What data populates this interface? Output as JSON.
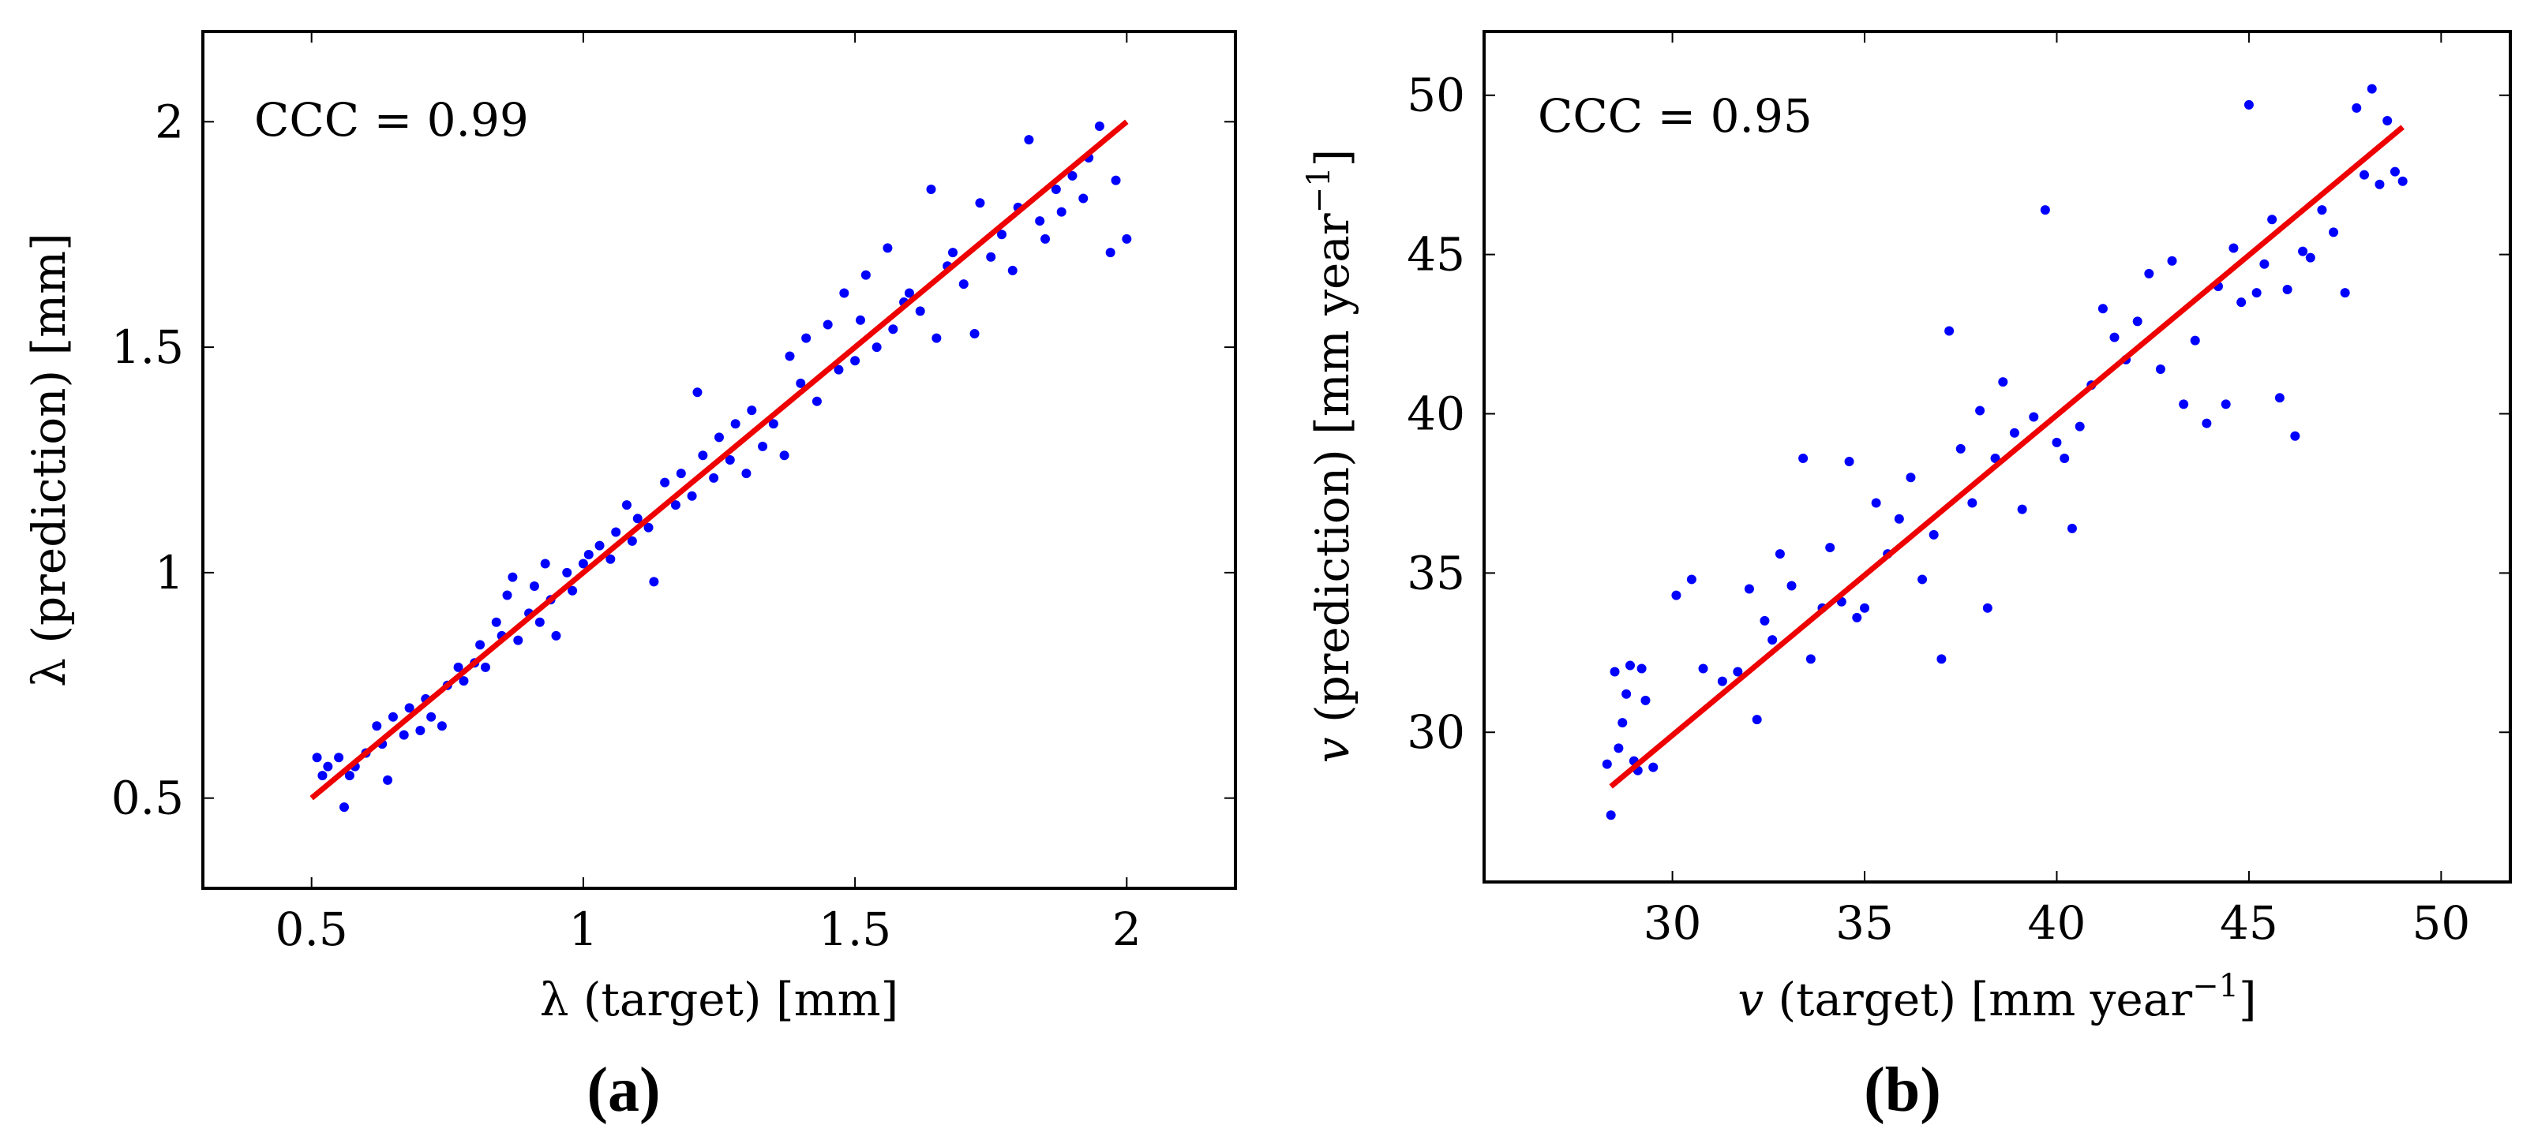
{
  "chart_data": [
    {
      "type": "scatter",
      "panel_label": "(a)",
      "annotation": "CCC = 0.99",
      "xlabel": "λ (target) [mm]",
      "ylabel": "λ (prediction) [mm]",
      "xlim": [
        0.3,
        2.2
      ],
      "ylim": [
        0.3,
        2.2
      ],
      "xticks": [
        0.5,
        1,
        1.5,
        2
      ],
      "yticks": [
        0.5,
        1,
        1.5,
        2
      ],
      "xtick_labels": [
        "0.5",
        "1",
        "1.5",
        "2"
      ],
      "ytick_labels": [
        "0.5",
        "1",
        "1.5",
        "2"
      ],
      "grid": false,
      "colors": {
        "points": "#0000ff",
        "fit_line": "#ee0000"
      },
      "series": [
        {
          "type": "scatter",
          "points": [
            [
              0.51,
              0.59
            ],
            [
              0.52,
              0.55
            ],
            [
              0.53,
              0.57
            ],
            [
              0.55,
              0.59
            ],
            [
              0.56,
              0.48
            ],
            [
              0.57,
              0.55
            ],
            [
              0.58,
              0.57
            ],
            [
              0.6,
              0.6
            ],
            [
              0.62,
              0.66
            ],
            [
              0.63,
              0.62
            ],
            [
              0.64,
              0.54
            ],
            [
              0.65,
              0.68
            ],
            [
              0.67,
              0.64
            ],
            [
              0.68,
              0.7
            ],
            [
              0.7,
              0.65
            ],
            [
              0.71,
              0.72
            ],
            [
              0.72,
              0.68
            ],
            [
              0.74,
              0.66
            ],
            [
              0.75,
              0.75
            ],
            [
              0.77,
              0.79
            ],
            [
              0.78,
              0.76
            ],
            [
              0.8,
              0.8
            ],
            [
              0.81,
              0.84
            ],
            [
              0.82,
              0.79
            ],
            [
              0.84,
              0.89
            ],
            [
              0.85,
              0.86
            ],
            [
              0.86,
              0.95
            ],
            [
              0.87,
              0.99
            ],
            [
              0.88,
              0.85
            ],
            [
              0.9,
              0.91
            ],
            [
              0.91,
              0.97
            ],
            [
              0.92,
              0.89
            ],
            [
              0.93,
              1.02
            ],
            [
              0.94,
              0.94
            ],
            [
              0.95,
              0.86
            ],
            [
              0.97,
              1.0
            ],
            [
              0.98,
              0.96
            ],
            [
              1.0,
              1.02
            ],
            [
              1.01,
              1.04
            ],
            [
              1.03,
              1.06
            ],
            [
              1.05,
              1.03
            ],
            [
              1.06,
              1.09
            ],
            [
              1.08,
              1.15
            ],
            [
              1.09,
              1.07
            ],
            [
              1.1,
              1.12
            ],
            [
              1.12,
              1.1
            ],
            [
              1.13,
              0.98
            ],
            [
              1.15,
              1.2
            ],
            [
              1.17,
              1.15
            ],
            [
              1.18,
              1.22
            ],
            [
              1.2,
              1.17
            ],
            [
              1.21,
              1.4
            ],
            [
              1.22,
              1.26
            ],
            [
              1.24,
              1.21
            ],
            [
              1.25,
              1.3
            ],
            [
              1.27,
              1.25
            ],
            [
              1.28,
              1.33
            ],
            [
              1.3,
              1.22
            ],
            [
              1.31,
              1.36
            ],
            [
              1.33,
              1.28
            ],
            [
              1.35,
              1.33
            ],
            [
              1.37,
              1.26
            ],
            [
              1.38,
              1.48
            ],
            [
              1.4,
              1.42
            ],
            [
              1.41,
              1.52
            ],
            [
              1.43,
              1.38
            ],
            [
              1.45,
              1.55
            ],
            [
              1.47,
              1.45
            ],
            [
              1.48,
              1.62
            ],
            [
              1.5,
              1.47
            ],
            [
              1.51,
              1.56
            ],
            [
              1.52,
              1.66
            ],
            [
              1.54,
              1.5
            ],
            [
              1.56,
              1.72
            ],
            [
              1.57,
              1.54
            ],
            [
              1.59,
              1.6
            ],
            [
              1.6,
              1.62
            ],
            [
              1.62,
              1.58
            ],
            [
              1.64,
              1.85
            ],
            [
              1.65,
              1.52
            ],
            [
              1.67,
              1.68
            ],
            [
              1.68,
              1.71
            ],
            [
              1.7,
              1.64
            ],
            [
              1.72,
              1.53
            ],
            [
              1.73,
              1.82
            ],
            [
              1.75,
              1.7
            ],
            [
              1.77,
              1.75
            ],
            [
              1.79,
              1.67
            ],
            [
              1.8,
              1.81
            ],
            [
              1.82,
              1.96
            ],
            [
              1.84,
              1.78
            ],
            [
              1.85,
              1.74
            ],
            [
              1.87,
              1.85
            ],
            [
              1.88,
              1.8
            ],
            [
              1.9,
              1.88
            ],
            [
              1.92,
              1.83
            ],
            [
              1.93,
              1.92
            ],
            [
              1.95,
              1.99
            ],
            [
              1.97,
              1.71
            ],
            [
              1.98,
              1.87
            ],
            [
              2.0,
              1.74
            ]
          ]
        },
        {
          "type": "line",
          "points": [
            [
              0.5,
              0.5
            ],
            [
              2.0,
              2.0
            ]
          ]
        }
      ]
    },
    {
      "type": "scatter",
      "panel_label": "(b)",
      "annotation": "CCC = 0.95",
      "xlabel_var": "v",
      "xlabel_mid": " (target) [mm year",
      "xlabel_exp": "−1",
      "xlabel_end": "]",
      "ylabel_var": "v",
      "ylabel_mid": " (prediction) [mm year",
      "ylabel_exp": "−1",
      "ylabel_end": "]",
      "xlim": [
        25.1,
        51.8
      ],
      "ylim": [
        25.3,
        52.0
      ],
      "xticks": [
        30,
        35,
        40,
        45,
        50
      ],
      "yticks": [
        30,
        35,
        40,
        45,
        50
      ],
      "xtick_labels": [
        "30",
        "35",
        "40",
        "45",
        "50"
      ],
      "ytick_labels": [
        "30",
        "35",
        "40",
        "45",
        "50"
      ],
      "grid": false,
      "colors": {
        "points": "#0000ff",
        "fit_line": "#ee0000"
      },
      "series": [
        {
          "type": "scatter",
          "points": [
            [
              28.3,
              29.0
            ],
            [
              28.4,
              27.4
            ],
            [
              28.5,
              31.9
            ],
            [
              28.6,
              29.5
            ],
            [
              28.7,
              30.3
            ],
            [
              28.8,
              31.2
            ],
            [
              28.9,
              32.1
            ],
            [
              29.0,
              29.1
            ],
            [
              29.1,
              28.8
            ],
            [
              29.2,
              32.0
            ],
            [
              29.3,
              31.0
            ],
            [
              29.5,
              28.9
            ],
            [
              30.1,
              34.3
            ],
            [
              30.5,
              34.8
            ],
            [
              30.8,
              32.0
            ],
            [
              31.3,
              31.6
            ],
            [
              31.7,
              31.9
            ],
            [
              32.0,
              34.5
            ],
            [
              32.2,
              30.4
            ],
            [
              32.4,
              33.5
            ],
            [
              32.6,
              32.9
            ],
            [
              32.8,
              35.6
            ],
            [
              33.1,
              34.6
            ],
            [
              33.4,
              38.6
            ],
            [
              33.6,
              32.3
            ],
            [
              33.9,
              33.9
            ],
            [
              34.1,
              35.8
            ],
            [
              34.4,
              34.1
            ],
            [
              34.6,
              38.5
            ],
            [
              34.8,
              33.6
            ],
            [
              35.0,
              33.9
            ],
            [
              35.3,
              37.2
            ],
            [
              35.6,
              35.6
            ],
            [
              35.9,
              36.7
            ],
            [
              36.2,
              38.0
            ],
            [
              36.5,
              34.8
            ],
            [
              36.8,
              36.2
            ],
            [
              37.0,
              32.3
            ],
            [
              37.2,
              42.6
            ],
            [
              37.5,
              38.9
            ],
            [
              37.8,
              37.2
            ],
            [
              38.0,
              40.1
            ],
            [
              38.2,
              33.9
            ],
            [
              38.4,
              38.6
            ],
            [
              38.6,
              41.0
            ],
            [
              38.9,
              39.4
            ],
            [
              39.1,
              37.0
            ],
            [
              39.4,
              39.9
            ],
            [
              39.7,
              46.4
            ],
            [
              40.0,
              39.1
            ],
            [
              40.2,
              38.6
            ],
            [
              40.4,
              36.4
            ],
            [
              40.6,
              39.6
            ],
            [
              40.9,
              40.9
            ],
            [
              41.2,
              43.3
            ],
            [
              41.5,
              42.4
            ],
            [
              41.8,
              41.7
            ],
            [
              42.1,
              42.9
            ],
            [
              42.4,
              44.4
            ],
            [
              42.7,
              41.4
            ],
            [
              43.0,
              44.8
            ],
            [
              43.3,
              40.3
            ],
            [
              43.6,
              42.3
            ],
            [
              43.9,
              39.7
            ],
            [
              44.2,
              44.0
            ],
            [
              44.4,
              40.3
            ],
            [
              44.6,
              45.2
            ],
            [
              44.8,
              43.5
            ],
            [
              45.0,
              49.7
            ],
            [
              45.2,
              43.8
            ],
            [
              45.4,
              44.7
            ],
            [
              45.6,
              46.1
            ],
            [
              45.8,
              40.5
            ],
            [
              46.0,
              43.9
            ],
            [
              46.2,
              39.3
            ],
            [
              46.4,
              45.1
            ],
            [
              46.6,
              44.9
            ],
            [
              46.9,
              46.4
            ],
            [
              47.2,
              45.7
            ],
            [
              47.5,
              43.8
            ],
            [
              47.8,
              49.6
            ],
            [
              48.0,
              47.5
            ],
            [
              48.2,
              50.2
            ],
            [
              48.4,
              47.2
            ],
            [
              48.6,
              49.2
            ],
            [
              48.8,
              47.6
            ],
            [
              49.0,
              47.3
            ]
          ]
        },
        {
          "type": "line",
          "points": [
            [
              28.4,
              28.3
            ],
            [
              49.0,
              49.0
            ]
          ]
        }
      ]
    }
  ]
}
